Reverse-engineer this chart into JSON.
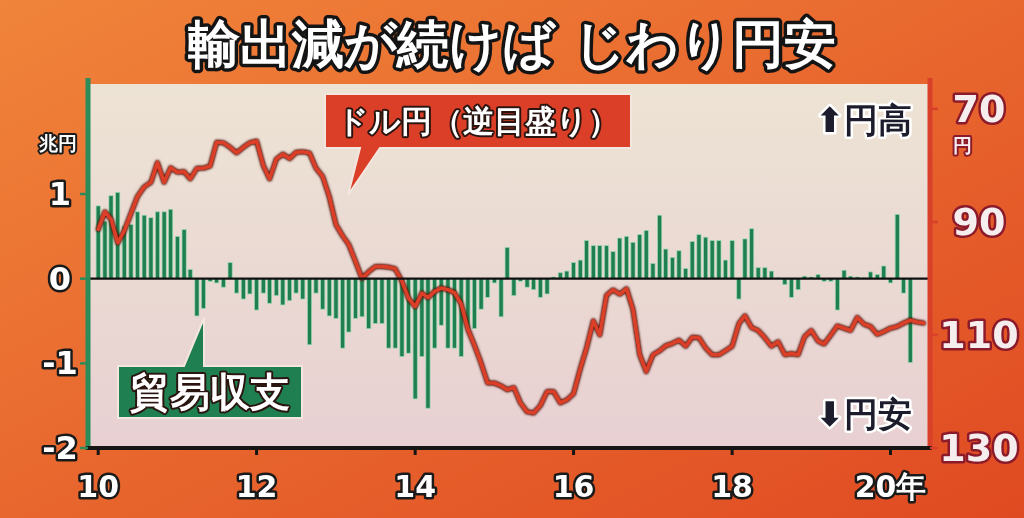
{
  "chart_data": {
    "type": "bar",
    "title": "輸出減が続けば じわり円安",
    "xlim": [
      "2009-11-15",
      "2020-07-01"
    ],
    "xticks": [
      {
        "value": "2010-01",
        "label": "10"
      },
      {
        "value": "2012-01",
        "label": "12"
      },
      {
        "value": "2014-01",
        "label": "14"
      },
      {
        "value": "2016-01",
        "label": "16"
      },
      {
        "value": "2018-01",
        "label": "18"
      },
      {
        "value": "2020-01",
        "label": "20年"
      }
    ],
    "ylabel": "兆円",
    "ylim": [
      -2,
      2.3
    ],
    "yticks": [
      -2,
      -1,
      0,
      1
    ],
    "y2label": "円",
    "y2lim": [
      130,
      65.6
    ],
    "y2ticks": [
      70,
      90,
      110,
      130
    ],
    "ref_lines": [
      {
        "axis": "y",
        "value": 0,
        "color": "#111111"
      }
    ],
    "annotations": [
      "⬆円高",
      "⬇円安"
    ],
    "series": [
      {
        "name": "貿易収支",
        "color": "#1f7f50",
        "x": [
          "2010-01",
          "2010-02",
          "2010-03",
          "2010-04",
          "2010-05",
          "2010-06",
          "2010-07",
          "2010-08",
          "2010-09",
          "2010-10",
          "2010-11",
          "2010-12",
          "2011-01",
          "2011-02",
          "2011-03",
          "2011-04",
          "2011-05",
          "2011-06",
          "2011-07",
          "2011-08",
          "2011-09",
          "2011-10",
          "2011-11",
          "2011-12",
          "2012-01",
          "2012-02",
          "2012-03",
          "2012-04",
          "2012-05",
          "2012-06",
          "2012-07",
          "2012-08",
          "2012-09",
          "2012-10",
          "2012-11",
          "2012-12",
          "2013-01",
          "2013-02",
          "2013-03",
          "2013-04",
          "2013-05",
          "2013-06",
          "2013-07",
          "2013-08",
          "2013-09",
          "2013-10",
          "2013-11",
          "2013-12",
          "2014-01",
          "2014-02",
          "2014-03",
          "2014-04",
          "2014-05",
          "2014-06",
          "2014-07",
          "2014-08",
          "2014-09",
          "2014-10",
          "2014-11",
          "2014-12",
          "2015-01",
          "2015-02",
          "2015-03",
          "2015-04",
          "2015-05",
          "2015-06",
          "2015-07",
          "2015-08",
          "2015-09",
          "2015-10",
          "2015-11",
          "2015-12",
          "2016-01",
          "2016-02",
          "2016-03",
          "2016-04",
          "2016-05",
          "2016-06",
          "2016-07",
          "2016-08",
          "2016-09",
          "2016-10",
          "2016-11",
          "2016-12",
          "2017-01",
          "2017-02",
          "2017-03",
          "2017-04",
          "2017-05",
          "2017-06",
          "2017-07",
          "2017-08",
          "2017-09",
          "2017-10",
          "2017-11",
          "2017-12",
          "2018-01",
          "2018-02",
          "2018-03",
          "2018-04",
          "2018-05",
          "2018-06",
          "2018-07",
          "2018-08",
          "2018-09",
          "2018-10",
          "2018-11",
          "2018-12",
          "2019-01",
          "2019-02",
          "2019-03",
          "2019-04",
          "2019-05",
          "2019-06",
          "2019-07",
          "2019-08",
          "2019-09",
          "2019-10",
          "2019-11",
          "2019-12",
          "2020-01",
          "2020-02",
          "2020-03",
          "2020-04"
        ],
        "values": [
          0.86,
          0.68,
          0.98,
          1.02,
          0.62,
          0.64,
          0.79,
          0.75,
          0.72,
          0.79,
          0.79,
          0.82,
          0.5,
          0.58,
          0.11,
          -0.44,
          -0.35,
          -0.03,
          -0.05,
          -0.1,
          0.19,
          -0.17,
          -0.24,
          -0.18,
          -0.37,
          -0.17,
          -0.29,
          -0.2,
          -0.31,
          -0.26,
          -0.17,
          -0.24,
          -0.78,
          -0.17,
          -0.36,
          -0.44,
          -0.47,
          -0.82,
          -0.63,
          -0.47,
          -0.45,
          -0.59,
          -0.53,
          -0.53,
          -0.82,
          -0.82,
          -0.92,
          -0.88,
          -1.42,
          -0.92,
          -1.53,
          -0.82,
          -0.55,
          -0.82,
          -0.82,
          -0.92,
          -0.59,
          -0.59,
          -0.36,
          -0.22,
          -0.05,
          -0.45,
          0.37,
          -0.2,
          -0.03,
          -0.1,
          -0.13,
          -0.22,
          -0.18,
          0.02,
          0.07,
          0.09,
          0.19,
          0.22,
          0.45,
          0.39,
          0.39,
          0.39,
          0.32,
          0.48,
          0.5,
          0.43,
          0.52,
          0.57,
          0.18,
          0.75,
          0.35,
          0.25,
          0.33,
          0.12,
          0.44,
          0.52,
          0.49,
          0.45,
          0.45,
          0.22,
          0.45,
          -0.24,
          0.47,
          0.59,
          0.13,
          0.13,
          0.09,
          0.01,
          -0.07,
          -0.22,
          -0.13,
          0.03,
          0.02,
          0.05,
          -0.03,
          -0.03,
          -0.37,
          0.1,
          0.03,
          0.02,
          0.01,
          0.08,
          0.05,
          0.15,
          -0.05,
          0.76,
          -0.17,
          -0.99
        ]
      },
      {
        "name": "ドル円（逆目盛り）",
        "type": "line",
        "axis": "y2",
        "color": "#dc3f28",
        "x": [
          "2010-01",
          "2010-02",
          "2010-03",
          "2010-04",
          "2010-05",
          "2010-06",
          "2010-07",
          "2010-08",
          "2010-09",
          "2010-10",
          "2010-11",
          "2010-12",
          "2011-01",
          "2011-02",
          "2011-03",
          "2011-04",
          "2011-05",
          "2011-06",
          "2011-07",
          "2011-08",
          "2011-09",
          "2011-10",
          "2011-11",
          "2011-12",
          "2012-01",
          "2012-02",
          "2012-03",
          "2012-04",
          "2012-05",
          "2012-06",
          "2012-07",
          "2012-08",
          "2012-09",
          "2012-10",
          "2012-11",
          "2012-12",
          "2013-01",
          "2013-02",
          "2013-03",
          "2013-04",
          "2013-05",
          "2013-06",
          "2013-07",
          "2013-08",
          "2013-09",
          "2013-10",
          "2013-11",
          "2013-12",
          "2014-01",
          "2014-02",
          "2014-03",
          "2014-04",
          "2014-05",
          "2014-06",
          "2014-07",
          "2014-08",
          "2014-09",
          "2014-10",
          "2014-11",
          "2014-12",
          "2015-01",
          "2015-02",
          "2015-03",
          "2015-04",
          "2015-05",
          "2015-06",
          "2015-07",
          "2015-08",
          "2015-09",
          "2015-10",
          "2015-11",
          "2015-12",
          "2016-01",
          "2016-02",
          "2016-03",
          "2016-04",
          "2016-05",
          "2016-06",
          "2016-07",
          "2016-08",
          "2016-09",
          "2016-10",
          "2016-11",
          "2016-12",
          "2017-01",
          "2017-02",
          "2017-03",
          "2017-04",
          "2017-05",
          "2017-06",
          "2017-07",
          "2017-08",
          "2017-09",
          "2017-10",
          "2017-11",
          "2017-12",
          "2018-01",
          "2018-02",
          "2018-03",
          "2018-04",
          "2018-05",
          "2018-06",
          "2018-07",
          "2018-08",
          "2018-09",
          "2018-10",
          "2018-11",
          "2018-12",
          "2019-01",
          "2019-02",
          "2019-03",
          "2019-04",
          "2019-05",
          "2019-06",
          "2019-07",
          "2019-08",
          "2019-09",
          "2019-10",
          "2019-11",
          "2019-12",
          "2020-01",
          "2020-02",
          "2020-03",
          "2020-04",
          "2020-05",
          "2020-06"
        ],
        "values": [
          91.3,
          88.2,
          89.5,
          93.7,
          91.6,
          88.5,
          85.5,
          83.8,
          83.0,
          79.5,
          83.0,
          80.4,
          81.2,
          81.1,
          82.4,
          80.5,
          80.5,
          80.1,
          75.9,
          76.0,
          76.8,
          77.8,
          76.8,
          76.0,
          75.7,
          80.0,
          82.4,
          78.9,
          78.0,
          78.8,
          77.7,
          77.6,
          77.8,
          80.5,
          82.0,
          85.5,
          90.5,
          92.5,
          94.0,
          97.0,
          100.0,
          98.8,
          97.9,
          97.9,
          98.0,
          98.3,
          100.5,
          103.5,
          105.0,
          102.6,
          103.4,
          102.3,
          101.7,
          102.0,
          102.5,
          104.5,
          109.0,
          111.8,
          115.0,
          118.5,
          118.5,
          119.0,
          119.7,
          119.3,
          122.0,
          123.6,
          123.8,
          122.5,
          120.0,
          120.0,
          122.0,
          121.5,
          120.4,
          116.0,
          112.3,
          107.5,
          110.0,
          103.0,
          102.0,
          102.8,
          101.8,
          105.5,
          113.5,
          116.5,
          113.5,
          112.8,
          111.9,
          111.5,
          110.9,
          112.0,
          110.4,
          110.5,
          112.3,
          113.5,
          113.5,
          112.8,
          112.0,
          108.0,
          106.6,
          108.7,
          109.2,
          110.5,
          112.0,
          111.2,
          113.5,
          113.3,
          113.5,
          110.3,
          109.2,
          111.1,
          111.6,
          110.0,
          108.4,
          108.8,
          109.2,
          106.9,
          108.1,
          108.5,
          109.9,
          109.4,
          108.8,
          108.5,
          107.9,
          107.4,
          107.7,
          107.9
        ]
      }
    ]
  }
}
